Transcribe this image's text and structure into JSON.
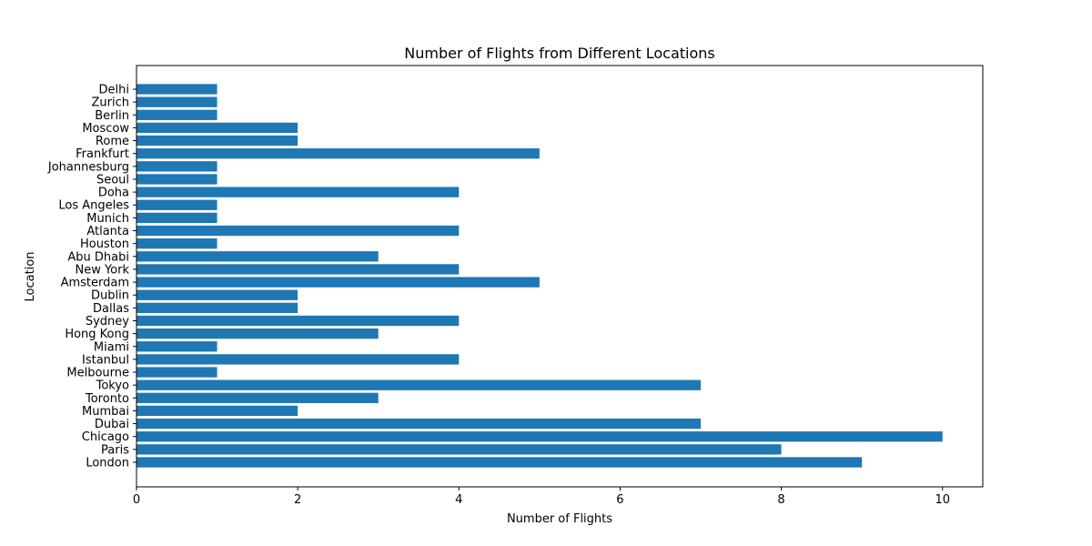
{
  "chart_data": {
    "type": "bar",
    "orientation": "horizontal",
    "title": "Number of Flights from Different Locations",
    "xlabel": "Number of Flights",
    "ylabel": "Location",
    "categories": [
      "London",
      "Paris",
      "Chicago",
      "Dubai",
      "Mumbai",
      "Toronto",
      "Tokyo",
      "Melbourne",
      "Istanbul",
      "Miami",
      "Hong Kong",
      "Sydney",
      "Dallas",
      "Dublin",
      "Amsterdam",
      "New York",
      "Abu Dhabi",
      "Houston",
      "Atlanta",
      "Munich",
      "Los Angeles",
      "Doha",
      "Seoul",
      "Johannesburg",
      "Frankfurt",
      "Rome",
      "Moscow",
      "Berlin",
      "Zurich",
      "Delhi"
    ],
    "values": [
      9,
      8,
      10,
      7,
      2,
      3,
      7,
      1,
      4,
      1,
      3,
      4,
      2,
      2,
      5,
      4,
      3,
      1,
      4,
      1,
      1,
      4,
      1,
      1,
      5,
      2,
      2,
      1,
      1,
      1
    ],
    "xlim": [
      0,
      10.5
    ],
    "xticks": [
      0,
      2,
      4,
      6,
      8,
      10
    ],
    "xtick_labels": [
      "0",
      "2",
      "4",
      "6",
      "8",
      "10"
    ],
    "grid": false,
    "colors": {
      "bar": "#1f77b4",
      "axis": "#000000",
      "background": "#ffffff"
    }
  }
}
